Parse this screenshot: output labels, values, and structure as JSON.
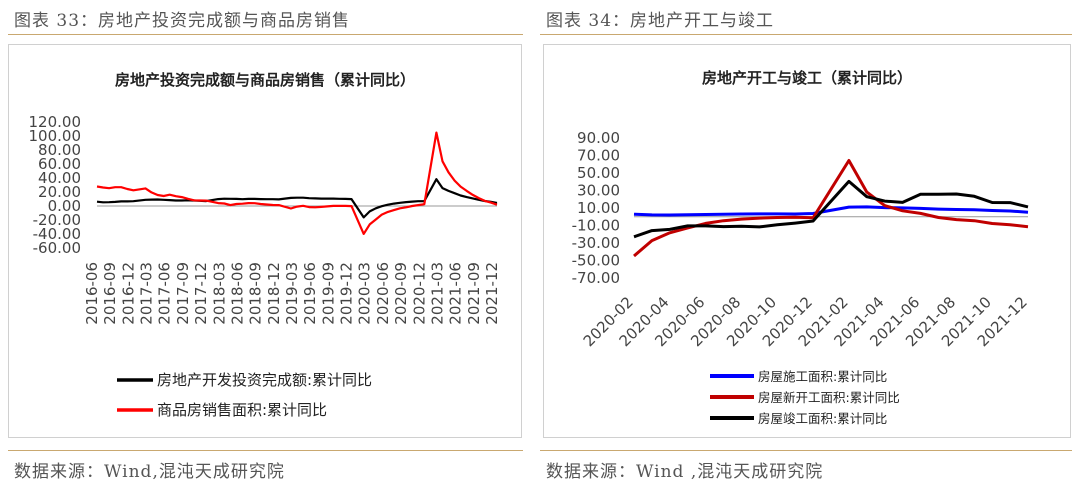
{
  "left": {
    "figure_label": "图表 33：房地产投资完成额与商品房销售",
    "source": "数据来源：Wind,混沌天成研究院"
  },
  "right": {
    "figure_label": "图表 34：房地产开工与竣工",
    "source": "数据来源：Wind ,混沌天成研究院"
  },
  "colors": {
    "rule": "#c9a870",
    "black": "#000000",
    "red": "#ff0000",
    "blue": "#0000ff",
    "darkred": "#c00000"
  },
  "chart_data": [
    {
      "type": "line",
      "title": "房地产投资完成额与商品房销售（累计同比）",
      "ylim": [
        -60,
        120
      ],
      "yticks": [
        "120.00",
        "100.00",
        "80.00",
        "60.00",
        "40.00",
        "20.00",
        "0.00",
        "-20.00",
        "-40.00",
        "-60.00"
      ],
      "x": [
        "2016-06",
        "2016-07",
        "2016-08",
        "2016-09",
        "2016-10",
        "2016-11",
        "2016-12",
        "2017-01",
        "2017-02",
        "2017-03",
        "2017-04",
        "2017-05",
        "2017-06",
        "2017-07",
        "2017-08",
        "2017-09",
        "2017-10",
        "2017-11",
        "2017-12",
        "2018-01",
        "2018-02",
        "2018-03",
        "2018-04",
        "2018-05",
        "2018-06",
        "2018-07",
        "2018-08",
        "2018-09",
        "2018-10",
        "2018-11",
        "2018-12",
        "2019-01",
        "2019-02",
        "2019-03",
        "2019-04",
        "2019-05",
        "2019-06",
        "2019-07",
        "2019-08",
        "2019-09",
        "2019-10",
        "2019-11",
        "2019-12",
        "2020-01",
        "2020-02",
        "2020-03",
        "2020-04",
        "2020-05",
        "2020-06",
        "2020-07",
        "2020-08",
        "2020-09",
        "2020-10",
        "2020-11",
        "2020-12",
        "2021-01",
        "2021-02",
        "2021-03",
        "2021-04",
        "2021-05",
        "2021-06",
        "2021-07",
        "2021-08",
        "2021-09",
        "2021-10",
        "2021-11",
        "2021-12"
      ],
      "xtick_labels": [
        "2016-06",
        "2016-09",
        "2016-12",
        "2017-03",
        "2017-06",
        "2017-09",
        "2017-12",
        "2018-03",
        "2018-06",
        "2018-09",
        "2018-12",
        "2019-03",
        "2019-06",
        "2019-09",
        "2019-12",
        "2020-03",
        "2020-06",
        "2020-09",
        "2020-12",
        "2021-03",
        "2021-06",
        "2021-09",
        "2021-12"
      ],
      "series": [
        {
          "name": "房地产开发投资完成额:累计同比",
          "color": "#000000",
          "values": [
            6.1,
            5.3,
            5.4,
            5.8,
            6.6,
            6.5,
            6.9,
            null,
            8.9,
            9.1,
            9.3,
            8.8,
            8.5,
            7.9,
            7.8,
            8.1,
            7.8,
            7.5,
            7.0,
            null,
            9.9,
            10.4,
            10.3,
            10.2,
            9.7,
            10.2,
            10.1,
            9.9,
            9.7,
            9.7,
            9.5,
            null,
            11.6,
            11.8,
            11.9,
            11.2,
            10.9,
            10.6,
            10.5,
            10.5,
            10.3,
            10.2,
            9.9,
            null,
            -16.3,
            -7.7,
            -3.3,
            -0.3,
            1.9,
            3.4,
            4.6,
            5.6,
            6.3,
            6.8,
            7.0,
            null,
            38.3,
            25.6,
            21.6,
            18.3,
            15.0,
            12.7,
            10.9,
            8.8,
            7.2,
            6.0,
            4.4
          ]
        },
        {
          "name": "商品房销售面积:累计同比",
          "color": "#ff0000",
          "values": [
            27.9,
            26.4,
            25.5,
            26.9,
            26.8,
            24.3,
            22.5,
            null,
            25.1,
            19.5,
            15.7,
            14.3,
            16.1,
            14.0,
            12.7,
            10.3,
            8.2,
            7.9,
            7.7,
            null,
            4.1,
            3.6,
            1.3,
            2.9,
            3.3,
            4.2,
            4.0,
            2.9,
            2.2,
            1.4,
            1.3,
            null,
            -3.6,
            -0.9,
            0.3,
            -1.6,
            -1.8,
            -1.3,
            -0.6,
            0.1,
            0.1,
            0.2,
            -0.1,
            null,
            -39.9,
            -26.3,
            -19.3,
            -12.3,
            -8.4,
            -5.8,
            -3.3,
            -1.8,
            0.0,
            1.3,
            2.6,
            null,
            104.9,
            63.8,
            48.1,
            36.3,
            27.7,
            21.5,
            15.9,
            11.3,
            7.3,
            4.8,
            1.9
          ]
        }
      ]
    },
    {
      "type": "line",
      "title": "房地产开工与竣工（累计同比）",
      "ylim": [
        -70,
        90
      ],
      "yticks": [
        "90.00",
        "70.00",
        "50.00",
        "30.00",
        "10.00",
        "-10.00",
        "-30.00",
        "-50.00",
        "-70.00"
      ],
      "x": [
        "2020-02",
        "2020-03",
        "2020-04",
        "2020-05",
        "2020-06",
        "2020-07",
        "2020-08",
        "2020-09",
        "2020-10",
        "2020-11",
        "2020-12",
        "2021-01",
        "2021-02",
        "2021-03",
        "2021-04",
        "2021-05",
        "2021-06",
        "2021-07",
        "2021-08",
        "2021-09",
        "2021-10",
        "2021-11",
        "2021-12"
      ],
      "xtick_labels": [
        "2020-02",
        "2020-04",
        "2020-06",
        "2020-08",
        "2020-10",
        "2020-12",
        "2021-02",
        "2021-04",
        "2021-06",
        "2021-08",
        "2021-10",
        "2021-12"
      ],
      "series": [
        {
          "name": "房屋施工面积:累计同比",
          "color": "#0000ff",
          "values": [
            2.9,
            2.1,
            2.0,
            2.3,
            2.6,
            2.8,
            3.1,
            3.2,
            3.2,
            3.1,
            3.7,
            null,
            11.0,
            11.2,
            10.5,
            10.1,
            9.5,
            8.8,
            8.3,
            7.9,
            7.1,
            6.6,
            5.2
          ]
        },
        {
          "name": "房屋新开工面积:累计同比",
          "color": "#c00000",
          "values": [
            -44.9,
            -27.2,
            -18.4,
            -12.8,
            -7.6,
            -4.5,
            -2.7,
            -1.5,
            -0.9,
            -0.6,
            -1.2,
            null,
            64.3,
            28.2,
            12.8,
            6.8,
            3.8,
            -0.9,
            -3.2,
            -4.5,
            -7.7,
            -9.1,
            -11.4
          ]
        },
        {
          "name": "房屋竣工面积:累计同比",
          "color": "#000000",
          "values": [
            -22.9,
            -15.8,
            -14.5,
            -10.4,
            -10.5,
            -11.3,
            -10.8,
            -11.6,
            -9.2,
            -7.3,
            -4.9,
            null,
            40.4,
            22.9,
            17.9,
            16.4,
            25.7,
            25.7,
            26.0,
            23.4,
            16.3,
            16.2,
            11.2
          ]
        }
      ]
    }
  ]
}
